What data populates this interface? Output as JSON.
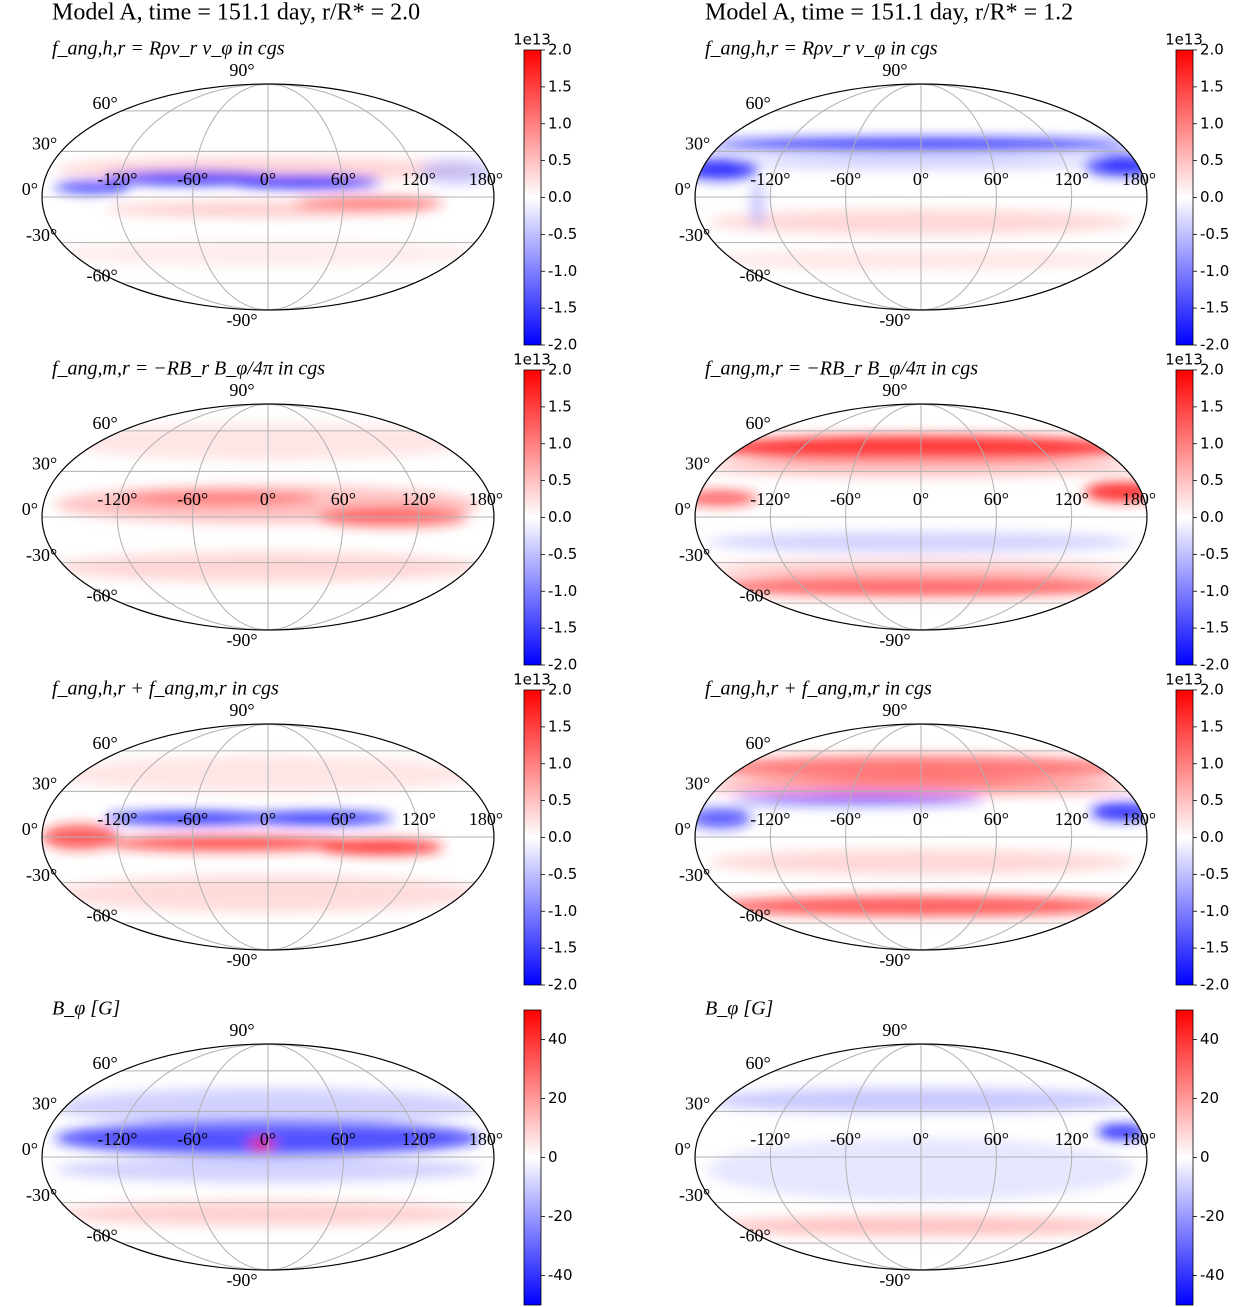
{
  "column_titles": [
    "Model A,  time = 151.1 day, r/R* = 2.0",
    "Model A,  time = 151.1 day, r/R* = 1.2"
  ],
  "chart_data": [
    {
      "type": "map",
      "title": "f_ang,h,r = Rρv_r v_φ in cgs",
      "projection": "mollweide",
      "grid": true,
      "xticks": [
        {
          "value": -120,
          "label": "-120°"
        },
        {
          "value": -60,
          "label": "-60°"
        },
        {
          "value": 0,
          "label": "0°"
        },
        {
          "value": 60,
          "label": "60°"
        },
        {
          "value": 120,
          "label": "120°"
        },
        {
          "value": 180,
          "label": "180°"
        }
      ],
      "yticks": [
        {
          "value": 90,
          "label": "90°"
        },
        {
          "value": 60,
          "label": "60°"
        },
        {
          "value": 30,
          "label": "30°"
        },
        {
          "value": 0,
          "label": "0°"
        },
        {
          "value": -30,
          "label": "-30°"
        },
        {
          "value": -60,
          "label": "-60°"
        },
        {
          "value": -90,
          "label": "-90°"
        }
      ],
      "colorbar": {
        "offset_label": "1e13",
        "clim": [
          -2,
          2
        ],
        "ticks": [
          {
            "value": 2,
            "label": "2.0"
          },
          1.5,
          {
            "value": 1,
            "label": "1.0"
          },
          0.5,
          {
            "value": 0,
            "label": "0.0"
          },
          -0.5,
          {
            "value": -1,
            "label": "-1.0"
          },
          -1.5,
          {
            "value": -2,
            "label": "-2.0"
          }
        ]
      }
    },
    {
      "type": "map",
      "title": "f_ang,h,r = Rρv_r v_φ in cgs",
      "projection": "mollweide",
      "grid": true,
      "xticks": [
        {
          "value": -120,
          "label": "-120°"
        },
        {
          "value": -60,
          "label": "-60°"
        },
        {
          "value": 0,
          "label": "0°"
        },
        {
          "value": 60,
          "label": "60°"
        },
        {
          "value": 120,
          "label": "120°"
        },
        {
          "value": 180,
          "label": "180°"
        }
      ],
      "yticks": [
        {
          "value": 90,
          "label": "90°"
        },
        {
          "value": 60,
          "label": "60°"
        },
        {
          "value": 30,
          "label": "30°"
        },
        {
          "value": 0,
          "label": "0°"
        },
        {
          "value": -30,
          "label": "-30°"
        },
        {
          "value": -60,
          "label": "-60°"
        },
        {
          "value": -90,
          "label": "-90°"
        }
      ],
      "colorbar": {
        "offset_label": "1e13",
        "clim": [
          -2,
          2
        ],
        "ticks": [
          {
            "value": 2,
            "label": "2.0"
          },
          1.5,
          {
            "value": 1,
            "label": "1.0"
          },
          0.5,
          {
            "value": 0,
            "label": "0.0"
          },
          -0.5,
          {
            "value": -1,
            "label": "-1.0"
          },
          -1.5,
          {
            "value": -2,
            "label": "-2.0"
          }
        ]
      }
    },
    {
      "type": "map",
      "title": "f_ang,m,r = −RB_r B_φ/4π in cgs",
      "projection": "mollweide",
      "grid": true,
      "xticks": [
        {
          "value": -120,
          "label": "-120°"
        },
        {
          "value": -60,
          "label": "-60°"
        },
        {
          "value": 0,
          "label": "0°"
        },
        {
          "value": 60,
          "label": "60°"
        },
        {
          "value": 120,
          "label": "120°"
        },
        {
          "value": 180,
          "label": "180°"
        }
      ],
      "yticks": [
        {
          "value": 90,
          "label": "90°"
        },
        {
          "value": 60,
          "label": "60°"
        },
        {
          "value": 30,
          "label": "30°"
        },
        {
          "value": 0,
          "label": "0°"
        },
        {
          "value": -30,
          "label": "-30°"
        },
        {
          "value": -60,
          "label": "-60°"
        },
        {
          "value": -90,
          "label": "-90°"
        }
      ],
      "colorbar": {
        "offset_label": "1e13",
        "clim": [
          -2,
          2
        ],
        "ticks": [
          {
            "value": 2,
            "label": "2.0"
          },
          1.5,
          {
            "value": 1,
            "label": "1.0"
          },
          0.5,
          {
            "value": 0,
            "label": "0.0"
          },
          -0.5,
          {
            "value": -1,
            "label": "-1.0"
          },
          -1.5,
          {
            "value": -2,
            "label": "-2.0"
          }
        ]
      }
    },
    {
      "type": "map",
      "title": "f_ang,m,r = −RB_r B_φ/4π in cgs",
      "projection": "mollweide",
      "grid": true,
      "xticks": [
        {
          "value": -120,
          "label": "-120°"
        },
        {
          "value": -60,
          "label": "-60°"
        },
        {
          "value": 0,
          "label": "0°"
        },
        {
          "value": 60,
          "label": "60°"
        },
        {
          "value": 120,
          "label": "120°"
        },
        {
          "value": 180,
          "label": "180°"
        }
      ],
      "yticks": [
        {
          "value": 90,
          "label": "90°"
        },
        {
          "value": 60,
          "label": "60°"
        },
        {
          "value": 30,
          "label": "30°"
        },
        {
          "value": 0,
          "label": "0°"
        },
        {
          "value": -30,
          "label": "-30°"
        },
        {
          "value": -60,
          "label": "-60°"
        },
        {
          "value": -90,
          "label": "-90°"
        }
      ],
      "colorbar": {
        "offset_label": "1e13",
        "clim": [
          -2,
          2
        ],
        "ticks": [
          {
            "value": 2,
            "label": "2.0"
          },
          1.5,
          {
            "value": 1,
            "label": "1.0"
          },
          0.5,
          {
            "value": 0,
            "label": "0.0"
          },
          -0.5,
          {
            "value": -1,
            "label": "-1.0"
          },
          -1.5,
          {
            "value": -2,
            "label": "-2.0"
          }
        ]
      }
    },
    {
      "type": "map",
      "title": "f_ang,h,r + f_ang,m,r in cgs",
      "projection": "mollweide",
      "grid": true,
      "xticks": [
        {
          "value": -120,
          "label": "-120°"
        },
        {
          "value": -60,
          "label": "-60°"
        },
        {
          "value": 0,
          "label": "0°"
        },
        {
          "value": 60,
          "label": "60°"
        },
        {
          "value": 120,
          "label": "120°"
        },
        {
          "value": 180,
          "label": "180°"
        }
      ],
      "yticks": [
        {
          "value": 90,
          "label": "90°"
        },
        {
          "value": 60,
          "label": "60°"
        },
        {
          "value": 30,
          "label": "30°"
        },
        {
          "value": 0,
          "label": "0°"
        },
        {
          "value": -30,
          "label": "-30°"
        },
        {
          "value": -60,
          "label": "-60°"
        },
        {
          "value": -90,
          "label": "-90°"
        }
      ],
      "colorbar": {
        "offset_label": "1e13",
        "clim": [
          -2,
          2
        ],
        "ticks": [
          {
            "value": 2,
            "label": "2.0"
          },
          1.5,
          {
            "value": 1,
            "label": "1.0"
          },
          0.5,
          {
            "value": 0,
            "label": "0.0"
          },
          -0.5,
          {
            "value": -1,
            "label": "-1.0"
          },
          -1.5,
          {
            "value": -2,
            "label": "-2.0"
          }
        ]
      }
    },
    {
      "type": "map",
      "title": "f_ang,h,r + f_ang,m,r in cgs",
      "projection": "mollweide",
      "grid": true,
      "xticks": [
        {
          "value": -120,
          "label": "-120°"
        },
        {
          "value": -60,
          "label": "-60°"
        },
        {
          "value": 0,
          "label": "0°"
        },
        {
          "value": 60,
          "label": "60°"
        },
        {
          "value": 120,
          "label": "120°"
        },
        {
          "value": 180,
          "label": "180°"
        }
      ],
      "yticks": [
        {
          "value": 90,
          "label": "90°"
        },
        {
          "value": 60,
          "label": "60°"
        },
        {
          "value": 30,
          "label": "30°"
        },
        {
          "value": 0,
          "label": "0°"
        },
        {
          "value": -30,
          "label": "-30°"
        },
        {
          "value": -60,
          "label": "-60°"
        },
        {
          "value": -90,
          "label": "-90°"
        }
      ],
      "colorbar": {
        "offset_label": "1e13",
        "clim": [
          -2,
          2
        ],
        "ticks": [
          {
            "value": 2,
            "label": "2.0"
          },
          1.5,
          {
            "value": 1,
            "label": "1.0"
          },
          0.5,
          {
            "value": 0,
            "label": "0.0"
          },
          -0.5,
          {
            "value": -1,
            "label": "-1.0"
          },
          -1.5,
          {
            "value": -2,
            "label": "-2.0"
          }
        ]
      }
    },
    {
      "type": "map",
      "title": "B_φ [G]",
      "projection": "mollweide",
      "grid": true,
      "xticks": [
        {
          "value": -120,
          "label": "-120°"
        },
        {
          "value": -60,
          "label": "-60°"
        },
        {
          "value": 0,
          "label": "0°"
        },
        {
          "value": 60,
          "label": "60°"
        },
        {
          "value": 120,
          "label": "120°"
        },
        {
          "value": 180,
          "label": "180°"
        }
      ],
      "yticks": [
        {
          "value": 90,
          "label": "90°"
        },
        {
          "value": 60,
          "label": "60°"
        },
        {
          "value": 30,
          "label": "30°"
        },
        {
          "value": 0,
          "label": "0°"
        },
        {
          "value": -30,
          "label": "-30°"
        },
        {
          "value": -60,
          "label": "-60°"
        },
        {
          "value": -90,
          "label": "-90°"
        }
      ],
      "colorbar": {
        "clim": [
          -50,
          50
        ],
        "ticks": [
          40,
          20,
          0,
          -20,
          -40
        ]
      }
    },
    {
      "type": "map",
      "title": "B_φ [G]",
      "projection": "mollweide",
      "grid": true,
      "xticks": [
        {
          "value": -120,
          "label": "-120°"
        },
        {
          "value": -60,
          "label": "-60°"
        },
        {
          "value": 0,
          "label": "0°"
        },
        {
          "value": 60,
          "label": "60°"
        },
        {
          "value": 120,
          "label": "120°"
        },
        {
          "value": 180,
          "label": "180°"
        }
      ],
      "yticks": [
        {
          "value": 90,
          "label": "90°"
        },
        {
          "value": 60,
          "label": "60°"
        },
        {
          "value": 30,
          "label": "30°"
        },
        {
          "value": 0,
          "label": "0°"
        },
        {
          "value": -30,
          "label": "-30°"
        },
        {
          "value": -60,
          "label": "-60°"
        },
        {
          "value": -90,
          "label": "-90°"
        }
      ],
      "colorbar": {
        "clim": [
          -50,
          50
        ],
        "ticks": [
          40,
          20,
          0,
          -20,
          -40
        ]
      }
    }
  ]
}
